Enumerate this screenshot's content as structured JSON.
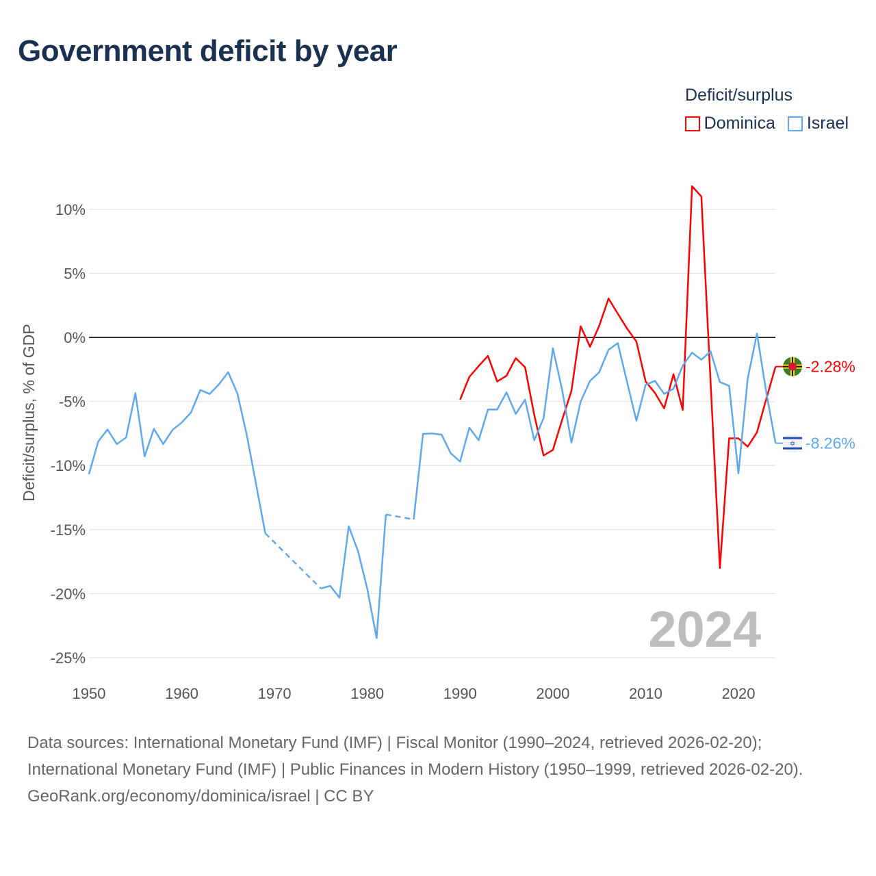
{
  "title": "Government deficit by year",
  "legend": {
    "title": "Deficit/surplus",
    "items": [
      {
        "label": "Dominica",
        "color": "#ff0000"
      },
      {
        "label": "Israel",
        "color": "#5fa8ee"
      }
    ]
  },
  "year_watermark": "2024",
  "sources": {
    "line1": "Data sources: International Monetary Fund (IMF) | Fiscal Monitor (1990–2024, retrieved 2026-02-20); International Monetary Fund (IMF) | Public Finances in Modern History (1950–1999, retrieved 2026-02-20).",
    "line2": "GeoRank.org/economy/dominica/israel | CC BY"
  },
  "chart_data": {
    "type": "line",
    "title": "Government deficit by year",
    "xlabel": "",
    "ylabel": "Deficit/surplus, % of GDP",
    "xlim": [
      1950,
      2024
    ],
    "ylim": [
      -25,
      12
    ],
    "xticks": [
      1950,
      1960,
      1970,
      1980,
      1990,
      2000,
      2010,
      2020
    ],
    "xtick_labels": [
      "1950",
      "1960",
      "1970",
      "1980",
      "1990",
      "2000",
      "2010",
      "2020"
    ],
    "yticks": [
      10,
      5,
      0,
      -5,
      -10,
      -15,
      -20,
      -25
    ],
    "ytick_labels": [
      "10%",
      "5%",
      "0%",
      "-5%",
      "-10%",
      "-15%",
      "-20%",
      "-25%"
    ],
    "grid": true,
    "legend_position": "top-right",
    "series": [
      {
        "name": "Dominica",
        "color": "#ff0000",
        "end_label": "-2.28%",
        "flag": "dominica-flag",
        "points": [
          [
            1990,
            -4.86
          ],
          [
            1991,
            -3.08
          ],
          [
            1992,
            -2.24
          ],
          [
            1993,
            -1.44
          ],
          [
            1994,
            -3.44
          ],
          [
            1995,
            -2.99
          ],
          [
            1996,
            -1.62
          ],
          [
            1997,
            -2.33
          ],
          [
            1998,
            -6.07
          ],
          [
            1999,
            -9.22
          ],
          [
            2000,
            -8.78
          ],
          [
            2001,
            -6.43
          ],
          [
            2002,
            -4.17
          ],
          [
            2003,
            0.87
          ],
          [
            2004,
            -0.73
          ],
          [
            2005,
            0.91
          ],
          [
            2006,
            3.04
          ],
          [
            2007,
            1.85
          ],
          [
            2008,
            0.69
          ],
          [
            2009,
            -0.32
          ],
          [
            2010,
            -3.44
          ],
          [
            2011,
            -4.33
          ],
          [
            2012,
            -5.54
          ],
          [
            2013,
            -2.87
          ],
          [
            2014,
            -5.66
          ],
          [
            2015,
            11.8
          ],
          [
            2016,
            11.0
          ],
          [
            2017,
            -3.5
          ],
          [
            2018,
            -18.0
          ],
          [
            2019,
            -7.88
          ],
          [
            2020,
            -7.88
          ],
          [
            2021,
            -8.53
          ],
          [
            2022,
            -7.41
          ],
          [
            2023,
            -4.8
          ],
          [
            2024,
            -2.28
          ]
        ]
      },
      {
        "name": "Israel",
        "color": "#5fa8ee",
        "end_label": "-8.26%",
        "flag": "israel-flag",
        "points": [
          [
            1950,
            -10.67
          ],
          [
            1951,
            -8.12
          ],
          [
            1952,
            -7.19
          ],
          [
            1953,
            -8.33
          ],
          [
            1954,
            -7.82
          ],
          [
            1955,
            -4.35
          ],
          [
            1956,
            -9.28
          ],
          [
            1957,
            -7.14
          ],
          [
            1958,
            -8.33
          ],
          [
            1959,
            -7.23
          ],
          [
            1960,
            -6.64
          ],
          [
            1961,
            -5.86
          ],
          [
            1962,
            -4.11
          ],
          [
            1963,
            -4.42
          ],
          [
            1964,
            -3.67
          ],
          [
            1965,
            -2.72
          ],
          [
            1966,
            -4.38
          ],
          [
            1967,
            -7.59
          ],
          [
            1968,
            -11.41
          ],
          [
            1969,
            -15.29
          ],
          [
            1975,
            -19.6
          ],
          [
            1976,
            -19.39
          ],
          [
            1977,
            -20.32
          ],
          [
            1978,
            -14.74
          ],
          [
            1979,
            -16.7
          ],
          [
            1980,
            -19.64
          ],
          [
            1981,
            -23.47
          ],
          [
            1982,
            -13.82
          ],
          [
            1985,
            -14.21
          ],
          [
            1986,
            -7.53
          ],
          [
            1987,
            -7.5
          ],
          [
            1988,
            -7.59
          ],
          [
            1989,
            -9.05
          ],
          [
            1990,
            -9.69
          ],
          [
            1991,
            -7.05
          ],
          [
            1992,
            -8.03
          ],
          [
            1993,
            -5.63
          ],
          [
            1994,
            -5.63
          ],
          [
            1995,
            -4.29
          ],
          [
            1996,
            -5.98
          ],
          [
            1997,
            -4.86
          ],
          [
            1998,
            -8.03
          ],
          [
            1999,
            -6.3
          ],
          [
            2000,
            -0.85
          ],
          [
            2001,
            -4.11
          ],
          [
            2002,
            -8.21
          ],
          [
            2003,
            -5.0
          ],
          [
            2004,
            -3.4
          ],
          [
            2005,
            -2.72
          ],
          [
            2006,
            -0.96
          ],
          [
            2007,
            -0.45
          ],
          [
            2008,
            -3.49
          ],
          [
            2009,
            -6.5
          ],
          [
            2010,
            -3.7
          ],
          [
            2011,
            -3.39
          ],
          [
            2012,
            -4.41
          ],
          [
            2013,
            -4.0
          ],
          [
            2014,
            -2.21
          ],
          [
            2015,
            -1.19
          ],
          [
            2016,
            -1.74
          ],
          [
            2017,
            -1.09
          ],
          [
            2018,
            -3.49
          ],
          [
            2019,
            -3.78
          ],
          [
            2020,
            -10.61
          ],
          [
            2021,
            -3.23
          ],
          [
            2022,
            0.3
          ],
          [
            2023,
            -4.3
          ],
          [
            2024,
            -8.26
          ]
        ]
      }
    ]
  }
}
